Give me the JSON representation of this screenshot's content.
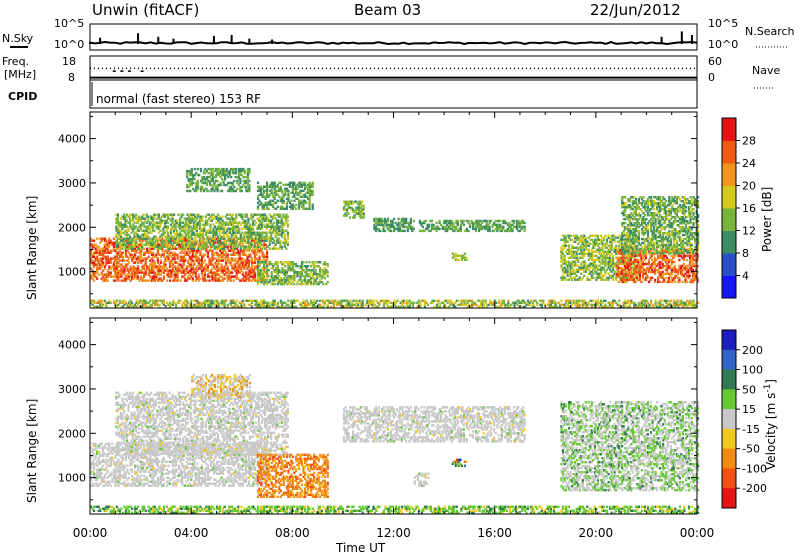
{
  "header": {
    "station": "Unwin (fitACF)",
    "beam": "Beam 03",
    "date": "22/Jun/2012"
  },
  "side_labels": {
    "nsky": "N.Sky",
    "nsearch": "N.Search",
    "freq_line1": "Freq.",
    "freq_line2": "[MHz]",
    "cpid": "CPID",
    "nave": "Nave"
  },
  "cpid_text": "normal (fast stereo) 153 RF",
  "chart_data": [
    {
      "type": "line",
      "panel": "noise",
      "left_axis": {
        "label": "N.Sky",
        "ticks": [
          "10^5",
          "10^0"
        ]
      },
      "right_axis": {
        "label": "N.Search",
        "ticks": [
          "10^5",
          "10^0"
        ]
      },
      "baseline_value": "10^0",
      "spike_times_h": [
        0.4,
        1.9,
        2.7,
        3.3,
        4.9,
        5.6,
        6.3,
        7.2,
        22.6,
        23.4,
        23.8
      ],
      "spike_heights": [
        0.35,
        0.6,
        0.4,
        0.3,
        0.45,
        0.5,
        0.3,
        0.25,
        0.4,
        0.7,
        0.5
      ]
    },
    {
      "type": "line",
      "panel": "frequency",
      "left_axis": {
        "label": "Freq. [MHz]",
        "ticks": [
          18,
          8
        ],
        "ylim": [
          8,
          18
        ]
      },
      "right_axis": {
        "label": "Nave",
        "ticks": [
          60,
          0
        ],
        "ylim": [
          0,
          60
        ]
      },
      "freq_mhz": 8.2,
      "nave": 36
    },
    {
      "type": "heatmap",
      "panel": "power",
      "title": "",
      "ylabel": "Slant Range [km]",
      "y_ticks": [
        1000,
        2000,
        3000,
        4000
      ],
      "ylim": [
        180,
        4600
      ],
      "x_ticks": [
        "00:00",
        "04:00",
        "08:00",
        "12:00",
        "16:00",
        "20:00",
        "00:00"
      ],
      "xlim_h": [
        0,
        24
      ],
      "colorbar": {
        "label": "Power [dB]",
        "ticks": [
          4,
          8,
          12,
          16,
          20,
          24,
          28
        ],
        "range": [
          0,
          32
        ],
        "colors": [
          "#1414ff",
          "#2850c8",
          "#3c8c64",
          "#78b43c",
          "#d2c81e",
          "#f0961e",
          "#f05a14",
          "#e61414"
        ]
      },
      "regions": [
        {
          "t": [
            0.0,
            7.0
          ],
          "r": [
            780,
            1750
          ],
          "p": [
            20,
            30
          ]
        },
        {
          "t": [
            1.0,
            7.8
          ],
          "r": [
            1500,
            2300
          ],
          "p": [
            10,
            18
          ]
        },
        {
          "t": [
            3.8,
            6.3
          ],
          "r": [
            2800,
            3300
          ],
          "p": [
            8,
            16
          ]
        },
        {
          "t": [
            6.6,
            9.4
          ],
          "r": [
            700,
            1200
          ],
          "p": [
            10,
            18
          ]
        },
        {
          "t": [
            6.6,
            8.8
          ],
          "r": [
            2400,
            3000
          ],
          "p": [
            8,
            16
          ]
        },
        {
          "t": [
            10.0,
            10.8
          ],
          "r": [
            2200,
            2600
          ],
          "p": [
            10,
            18
          ]
        },
        {
          "t": [
            11.2,
            12.8
          ],
          "r": [
            1900,
            2200
          ],
          "p": [
            8,
            14
          ]
        },
        {
          "t": [
            13.0,
            17.2
          ],
          "r": [
            1900,
            2150
          ],
          "p": [
            8,
            16
          ]
        },
        {
          "t": [
            14.3,
            14.9
          ],
          "r": [
            1250,
            1400
          ],
          "p": [
            12,
            18
          ]
        },
        {
          "t": [
            18.6,
            21.6
          ],
          "r": [
            800,
            1800
          ],
          "p": [
            10,
            20
          ]
        },
        {
          "t": [
            20.8,
            24.0
          ],
          "r": [
            750,
            1500
          ],
          "p": [
            20,
            30
          ]
        },
        {
          "t": [
            21.0,
            24.0
          ],
          "r": [
            1400,
            2700
          ],
          "p": [
            8,
            18
          ]
        },
        {
          "t": [
            0.0,
            24.0
          ],
          "r": [
            190,
            330
          ],
          "p": [
            10,
            22
          ]
        }
      ]
    },
    {
      "type": "heatmap",
      "panel": "velocity",
      "title": "",
      "ylabel": "Slant Range [km]",
      "y_ticks": [
        1000,
        2000,
        3000,
        4000
      ],
      "ylim": [
        180,
        4600
      ],
      "x_ticks": [
        "00:00",
        "04:00",
        "08:00",
        "12:00",
        "16:00",
        "20:00",
        "00:00"
      ],
      "xlim_h": [
        0,
        24
      ],
      "xlabel": "Time UT",
      "colorbar": {
        "label": "Velocity [m s-1]",
        "ticks": [
          200,
          100,
          50,
          15,
          -15,
          -50,
          -100,
          -200
        ],
        "colors": [
          "#1e1ebe",
          "#3264c8",
          "#327850",
          "#64c832",
          "#c8c8c8",
          "#f0c81e",
          "#f08c14",
          "#f05014",
          "#e61414"
        ]
      },
      "regions": [
        {
          "t": [
            0.0,
            7.0
          ],
          "r": [
            800,
            1750
          ],
          "v": "-15..15"
        },
        {
          "t": [
            1.0,
            7.8
          ],
          "r": [
            1500,
            2900
          ],
          "v": "-15..15"
        },
        {
          "t": [
            4.0,
            6.3
          ],
          "r": [
            2800,
            3300
          ],
          "v": "-50..15"
        },
        {
          "t": [
            6.6,
            9.4
          ],
          "r": [
            550,
            1500
          ],
          "v": "-100..-50"
        },
        {
          "t": [
            10.0,
            17.2
          ],
          "r": [
            1800,
            2600
          ],
          "v": "-15..15"
        },
        {
          "t": [
            12.8,
            13.4
          ],
          "r": [
            800,
            1100
          ],
          "v": "-15..15"
        },
        {
          "t": [
            14.3,
            14.9
          ],
          "r": [
            1250,
            1400
          ],
          "v": "mixed"
        },
        {
          "t": [
            18.6,
            24.0
          ],
          "r": [
            700,
            2700
          ],
          "v": "-15..50"
        },
        {
          "t": [
            0.0,
            24.0
          ],
          "r": [
            190,
            330
          ],
          "v": "15..50"
        }
      ]
    }
  ]
}
